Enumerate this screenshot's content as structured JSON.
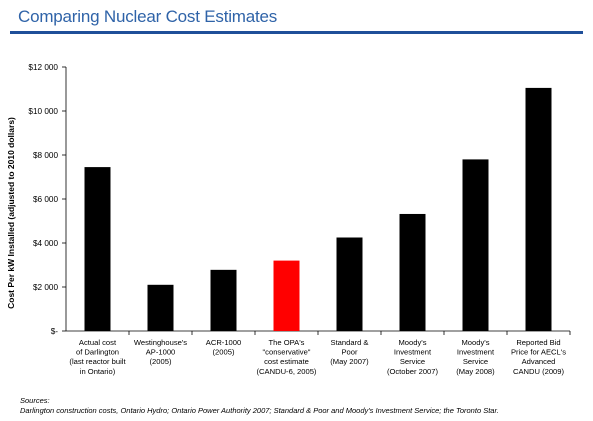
{
  "header": {
    "title": "Comparing Nuclear Cost Estimates"
  },
  "chart_data": {
    "type": "bar",
    "ylabel": "Cost Per kW Installed (adjusted to 2010 dollars)",
    "ylim": [
      0,
      12000
    ],
    "yticks": [
      0,
      2000,
      4000,
      6000,
      8000,
      10000,
      12000
    ],
    "ytick_labels": [
      "$-",
      "$2 000",
      "$4 000",
      "$6 000",
      "$8 000",
      "$10 000",
      "$12 000"
    ],
    "categories": [
      [
        "Actual cost",
        "of Darlington",
        "(last reactor built",
        "in Ontario)"
      ],
      [
        "Westinghouse's",
        "AP-1000",
        "(2005)"
      ],
      [
        "ACR-1000",
        "(2005)"
      ],
      [
        "The OPA's",
        "\"conservative\"",
        "cost estimate",
        "(CANDU-6, 2005)"
      ],
      [
        "Standard &",
        "Poor",
        "(May 2007)"
      ],
      [
        "Moody's",
        "Investment",
        "Service",
        "(October 2007)"
      ],
      [
        "Moody's",
        "Investment",
        "Service",
        "(May 2008)"
      ],
      [
        "Reported Bid",
        "Price for AECL's",
        "Advanced",
        "CANDU (2009)"
      ]
    ],
    "values": [
      7450,
      2100,
      2780,
      3200,
      4250,
      5320,
      7800,
      11050
    ],
    "bar_colors": [
      "#000000",
      "#000000",
      "#000000",
      "#ff0000",
      "#000000",
      "#000000",
      "#000000",
      "#000000"
    ],
    "grid": false,
    "legend": "none"
  },
  "sources": {
    "heading": "Sources:",
    "text": "Darlington construction costs, Ontario Hydro; Ontario Power Authority 2007; Standard & Poor and Moody's Investment Service; the Toronto Star."
  }
}
